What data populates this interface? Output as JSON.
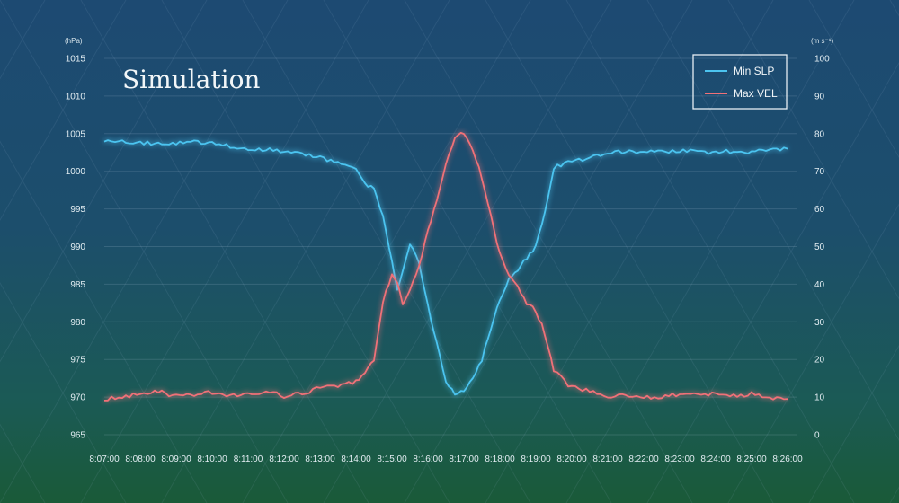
{
  "chart_data": {
    "type": "line",
    "title": "Simulation",
    "y_left_unit": "(hPa)",
    "y_right_unit": "(m s⁻¹)",
    "ylim_left": [
      965,
      1015
    ],
    "ylim_right": [
      0,
      100
    ],
    "yticks_left": [
      "1015",
      "1010",
      "1005",
      "1000",
      "995",
      "990",
      "985",
      "980",
      "975",
      "970",
      "965"
    ],
    "yticks_right": [
      "100",
      "90",
      "80",
      "70",
      "60",
      "50",
      "40",
      "30",
      "20",
      "10",
      "0"
    ],
    "x_labels": [
      "8:07:00",
      "8:08:00",
      "8:09:00",
      "8:10:00",
      "8:11:00",
      "8:12:00",
      "8:13:00",
      "8:14:00",
      "8:15:00",
      "8:16:00",
      "8:17:00",
      "8:18:00",
      "8:19:00",
      "8:20:00",
      "8:21:00",
      "8:22:00",
      "8:23:00",
      "8:24:00",
      "8:25:00",
      "8:26:00"
    ],
    "legend_position": "top-right",
    "grid": true,
    "series": [
      {
        "name": "Min SLP",
        "axis": "left",
        "color": "#4cc4f0",
        "x": [
          0,
          0.5,
          1,
          1.5,
          2,
          2.5,
          3,
          3.5,
          4,
          4.5,
          5,
          5.5,
          6,
          6.5,
          7,
          7.25,
          7.5,
          7.75,
          8,
          8.15,
          8.3,
          8.5,
          8.75,
          9,
          9.25,
          9.5,
          9.75,
          10,
          10.25,
          10.5,
          10.75,
          11,
          11.25,
          11.5,
          11.75,
          12,
          12.25,
          12.5,
          13,
          13.5,
          14,
          14.5,
          15,
          15.5,
          16,
          16.5,
          17,
          17.5,
          18,
          18.5,
          19
        ],
        "values": [
          1004.2,
          1004,
          1003.8,
          1003.7,
          1003.8,
          1003.9,
          1003.7,
          1003.3,
          1002.8,
          1002.9,
          1002.6,
          1002.3,
          1001.8,
          1001.2,
          1000.2,
          998.5,
          997.5,
          994,
          988,
          984,
          987,
          990.5,
          988,
          982,
          977,
          972,
          970.3,
          971,
          972.5,
          975,
          979,
          983,
          985.5,
          987,
          988.5,
          990,
          994.5,
          1000.5,
          1001.3,
          1001.8,
          1002.4,
          1002.6,
          1002.5,
          1002.6,
          1002.7,
          1002.6,
          1002.5,
          1002.7,
          1002.5,
          1003,
          1003
        ]
      },
      {
        "name": "Max VEL",
        "axis": "right",
        "color": "#f07178",
        "x": [
          0,
          0.5,
          1,
          1.5,
          2,
          2.5,
          3,
          3.5,
          4,
          4.5,
          5,
          5.5,
          6,
          6.5,
          7,
          7.25,
          7.5,
          7.75,
          8,
          8.15,
          8.3,
          8.5,
          8.75,
          9,
          9.25,
          9.5,
          9.75,
          10,
          10.25,
          10.5,
          10.75,
          11,
          11.25,
          11.5,
          11.75,
          12,
          12.25,
          12.5,
          13,
          13.5,
          14,
          14.5,
          15,
          15.5,
          16,
          16.5,
          17,
          17.5,
          18,
          18.5,
          19
        ],
        "values": [
          9.5,
          9.8,
          11,
          11.5,
          10.3,
          10.8,
          11.3,
          10.6,
          10.5,
          11.5,
          10.2,
          11,
          12.5,
          12.8,
          14,
          16,
          20,
          35,
          43,
          40,
          35,
          38,
          45,
          54,
          62,
          72,
          79,
          80,
          76,
          68,
          58,
          48,
          43,
          39,
          35,
          33,
          27,
          17,
          12.5,
          11.5,
          10.3,
          10.4,
          10,
          10.2,
          10.6,
          10.5,
          10.8,
          10.2,
          11,
          9.8,
          9.5
        ]
      }
    ]
  }
}
